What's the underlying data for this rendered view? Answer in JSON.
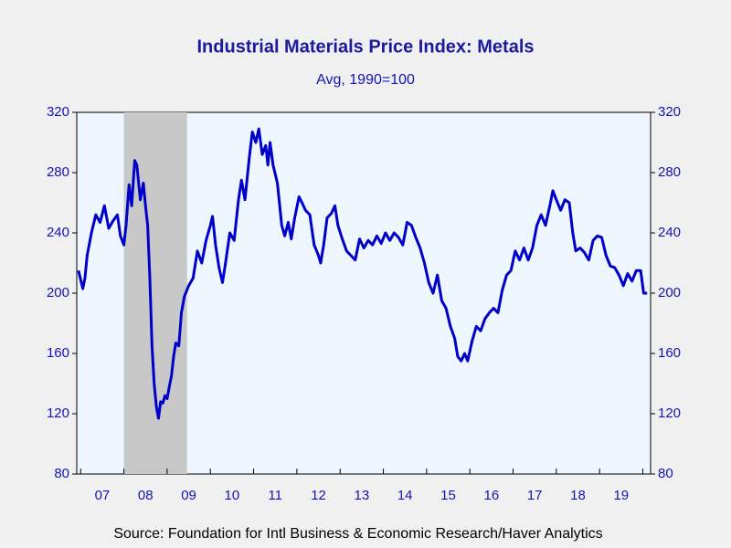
{
  "chart_data": {
    "type": "line",
    "title": "Industrial Materials Price Index: Metals",
    "subtitle": "Avg, 1990=100",
    "source": "Source:  Foundation for Intl Business & Economic Research/Haver Analytics",
    "color": "#0000c8",
    "shaded_regions": [
      [
        8.0,
        9.46
      ]
    ],
    "xlim": [
      6.91,
      20.18
    ],
    "xtick_marks": [
      7,
      8,
      9,
      10,
      11,
      12,
      13,
      14,
      15,
      16,
      17,
      18,
      19,
      20
    ],
    "xticks": [
      {
        "value": 7.5,
        "label": "07"
      },
      {
        "value": 8.5,
        "label": "08"
      },
      {
        "value": 9.5,
        "label": "09"
      },
      {
        "value": 10.5,
        "label": "10"
      },
      {
        "value": 11.5,
        "label": "11"
      },
      {
        "value": 12.5,
        "label": "12"
      },
      {
        "value": 13.5,
        "label": "13"
      },
      {
        "value": 14.5,
        "label": "14"
      },
      {
        "value": 15.5,
        "label": "15"
      },
      {
        "value": 16.5,
        "label": "16"
      },
      {
        "value": 17.5,
        "label": "17"
      },
      {
        "value": 18.5,
        "label": "18"
      },
      {
        "value": 19.5,
        "label": "19"
      }
    ],
    "ylim": [
      80,
      320
    ],
    "yticks": [
      80,
      120,
      160,
      200,
      240,
      280,
      320
    ],
    "y2lim": [
      80,
      320
    ],
    "y2ticks": [
      80,
      120,
      160,
      200,
      240,
      280,
      320
    ],
    "x": [
      6.95,
      7.05,
      7.1,
      7.15,
      7.25,
      7.35,
      7.45,
      7.55,
      7.65,
      7.75,
      7.85,
      7.92,
      8.0,
      8.05,
      8.12,
      8.18,
      8.25,
      8.3,
      8.38,
      8.45,
      8.5,
      8.55,
      8.6,
      8.65,
      8.7,
      8.75,
      8.8,
      8.85,
      8.9,
      8.95,
      9.0,
      9.05,
      9.1,
      9.15,
      9.2,
      9.27,
      9.33,
      9.4,
      9.5,
      9.6,
      9.7,
      9.8,
      9.9,
      10.0,
      10.05,
      10.12,
      10.2,
      10.28,
      10.35,
      10.45,
      10.55,
      10.65,
      10.72,
      10.8,
      10.9,
      10.97,
      11.05,
      11.12,
      11.2,
      11.28,
      11.33,
      11.38,
      11.45,
      11.55,
      11.65,
      11.72,
      11.8,
      11.87,
      11.95,
      12.05,
      12.12,
      12.2,
      12.3,
      12.4,
      12.5,
      12.55,
      12.62,
      12.7,
      12.8,
      12.88,
      12.95,
      13.05,
      13.15,
      13.25,
      13.35,
      13.45,
      13.55,
      13.65,
      13.75,
      13.85,
      13.95,
      14.05,
      14.15,
      14.25,
      14.35,
      14.45,
      14.55,
      14.65,
      14.75,
      14.85,
      14.95,
      15.05,
      15.15,
      15.25,
      15.35,
      15.45,
      15.55,
      15.65,
      15.72,
      15.8,
      15.88,
      15.95,
      16.05,
      16.15,
      16.25,
      16.35,
      16.45,
      16.55,
      16.65,
      16.75,
      16.85,
      16.95,
      17.05,
      17.15,
      17.25,
      17.35,
      17.45,
      17.55,
      17.65,
      17.75,
      17.85,
      17.92,
      18.0,
      18.1,
      18.2,
      18.3,
      18.38,
      18.45,
      18.55,
      18.65,
      18.75,
      18.85,
      18.95,
      19.05,
      19.15,
      19.25,
      19.35,
      19.45,
      19.55,
      19.65,
      19.75,
      19.85,
      19.95,
      20.02,
      20.1
    ],
    "values": [
      215,
      203,
      210,
      225,
      240,
      252,
      247,
      258,
      243,
      248,
      252,
      238,
      232,
      245,
      272,
      258,
      288,
      285,
      262,
      273,
      258,
      245,
      210,
      165,
      140,
      125,
      117,
      128,
      127,
      132,
      130,
      138,
      145,
      158,
      167,
      165,
      187,
      198,
      205,
      210,
      228,
      220,
      235,
      245,
      251,
      232,
      217,
      207,
      220,
      240,
      235,
      262,
      275,
      262,
      290,
      307,
      300,
      309,
      292,
      298,
      285,
      300,
      285,
      273,
      245,
      238,
      247,
      236,
      250,
      264,
      260,
      255,
      252,
      232,
      225,
      220,
      232,
      250,
      253,
      258,
      245,
      236,
      228,
      225,
      222,
      236,
      230,
      235,
      232,
      238,
      233,
      240,
      235,
      240,
      237,
      232,
      247,
      245,
      237,
      230,
      220,
      207,
      200,
      212,
      195,
      190,
      178,
      170,
      158,
      155,
      160,
      155,
      168,
      178,
      175,
      183,
      187,
      190,
      187,
      202,
      212,
      215,
      228,
      222,
      230,
      222,
      230,
      245,
      252,
      245,
      258,
      268,
      262,
      255,
      262,
      260,
      240,
      228,
      230,
      227,
      222,
      235,
      238,
      237,
      225,
      218,
      217,
      212,
      205,
      213,
      208,
      215,
      215,
      200,
      200
    ]
  }
}
